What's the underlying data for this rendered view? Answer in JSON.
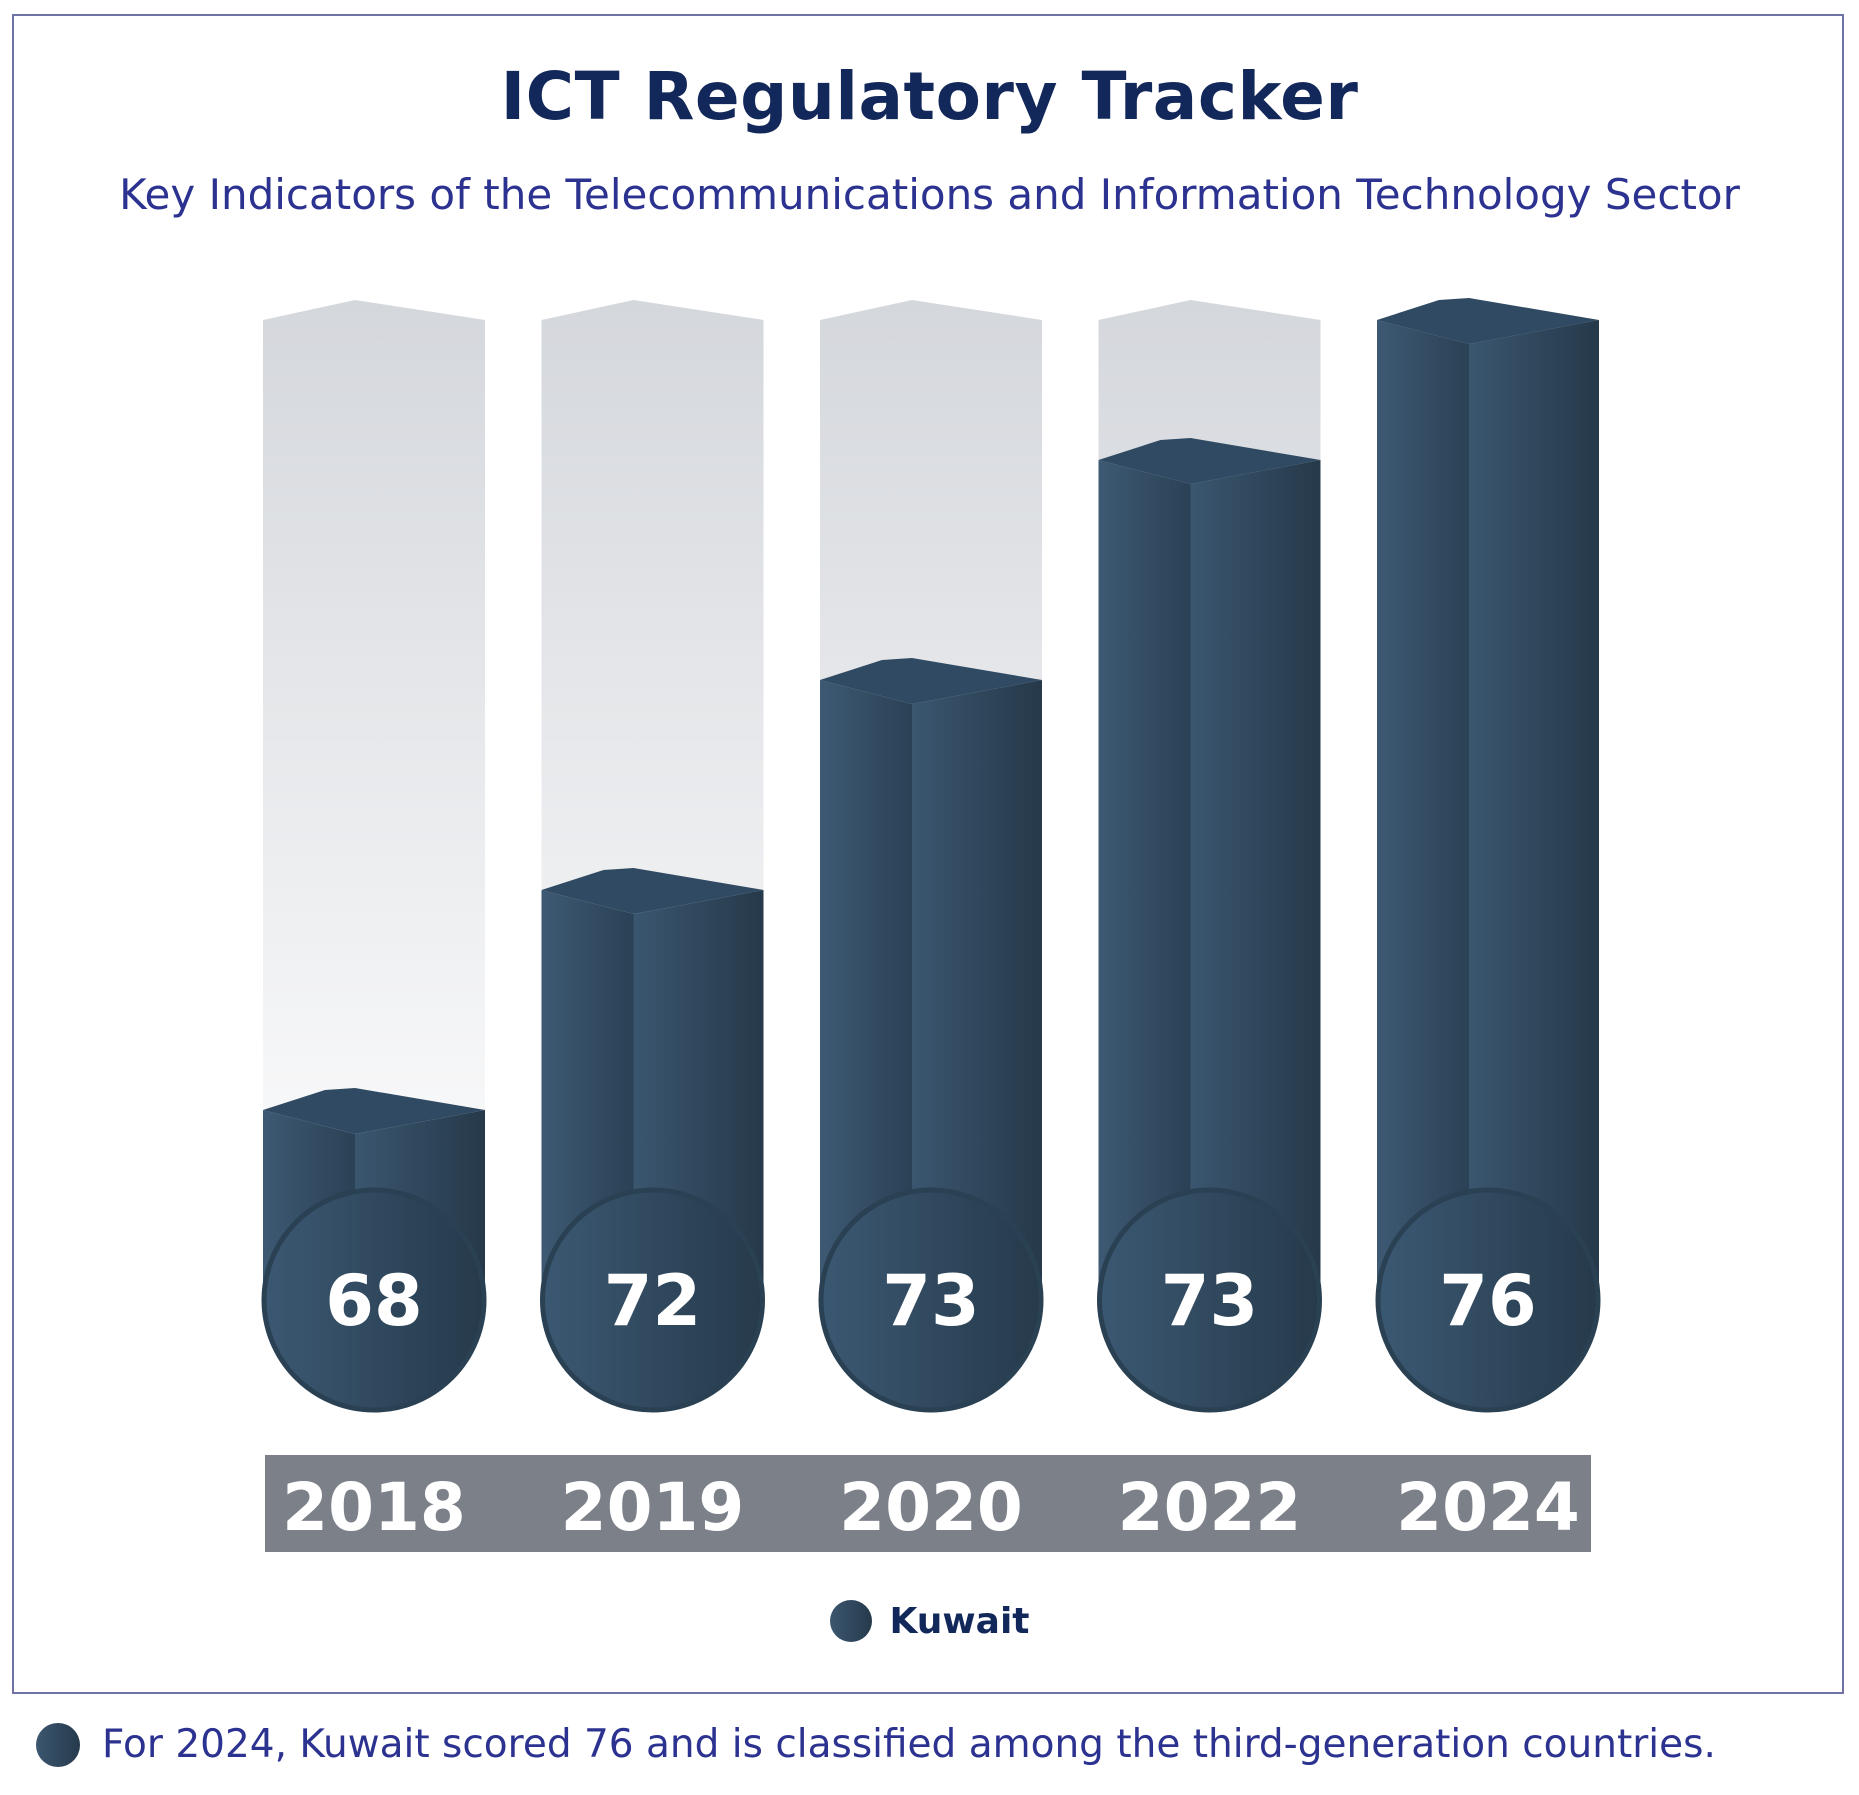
{
  "title": "ICT Regulatory Tracker",
  "subtitle": "Key Indicators of the Telecommunications and Information Technology Sector",
  "legend": {
    "label": "Kuwait"
  },
  "note": "For 2024, Kuwait scored 76 and is classified among the third-generation countries.",
  "colors": {
    "bar": "#34506a",
    "bar_dark": "#263a4c",
    "track": "#d4d7dc",
    "year_strip": "#7b8089",
    "title": "#13285a",
    "subtitle": "#2c3290"
  },
  "chart_data": {
    "type": "bar",
    "categories": [
      "2018",
      "2019",
      "2020",
      "2022",
      "2024"
    ],
    "series": [
      {
        "name": "Kuwait",
        "values": [
          68,
          72,
          73,
          73,
          76
        ]
      }
    ],
    "value_labels": [
      "68",
      "72",
      "73",
      "73",
      "76"
    ],
    "bar_fill_fraction": [
      0.21,
      0.43,
      0.64,
      0.86,
      1.0
    ]
  }
}
